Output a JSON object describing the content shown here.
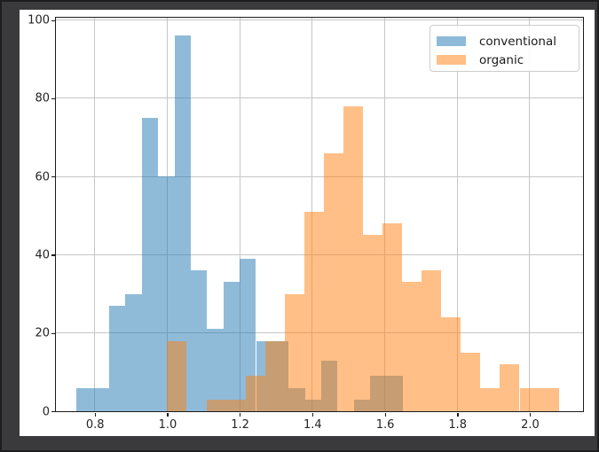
{
  "window": {
    "background_color": "#3a3a3c",
    "figure_background_color": "#ffffff"
  },
  "chart_data": {
    "type": "bar",
    "variant": "overlaid-histograms",
    "title": "",
    "xlabel": "",
    "ylabel": "",
    "xlim": [
      0.693,
      2.147
    ],
    "ylim": [
      0,
      100.6
    ],
    "xticks": [
      {
        "value": 0.8,
        "label": "0.8"
      },
      {
        "value": 1.0,
        "label": "1.0"
      },
      {
        "value": 1.2,
        "label": "1.2"
      },
      {
        "value": 1.4,
        "label": "1.4"
      },
      {
        "value": 1.6,
        "label": "1.6"
      },
      {
        "value": 1.8,
        "label": "1.8"
      },
      {
        "value": 2.0,
        "label": "2.0"
      }
    ],
    "yticks": [
      {
        "value": 0,
        "label": "0"
      },
      {
        "value": 20,
        "label": "20"
      },
      {
        "value": 40,
        "label": "40"
      },
      {
        "value": 60,
        "label": "60"
      },
      {
        "value": 80,
        "label": "80"
      },
      {
        "value": 100,
        "label": "100"
      }
    ],
    "grid": true,
    "grid_color": "#c6c6c6",
    "spine_color": "#1b1b1b",
    "tick_label_color": "#242424",
    "legend": {
      "position": "upper right",
      "entries": [
        "conventional",
        "organic"
      ]
    },
    "series": [
      {
        "name": "conventional",
        "base_color": "#1f77b4",
        "fill": "rgba(31,119,180,0.5)",
        "legend_swatch": "#8ebad9",
        "bin_start": 0.75,
        "bin_width": 0.045,
        "counts": [
          6,
          6,
          27,
          30,
          75,
          60,
          96,
          36,
          21,
          33,
          39,
          18,
          18,
          6,
          3,
          13,
          0,
          3,
          9,
          9
        ]
      },
      {
        "name": "organic",
        "base_color": "#ff7f0e",
        "fill": "rgba(255,127,14,0.5)",
        "legend_swatch": "#ffbf86",
        "bin_start": 1.0,
        "bin_width": 0.054,
        "counts": [
          18,
          0,
          3,
          3,
          9,
          18,
          30,
          51,
          66,
          78,
          45,
          48,
          33,
          36,
          24,
          15,
          6,
          12,
          6,
          6
        ]
      }
    ]
  }
}
